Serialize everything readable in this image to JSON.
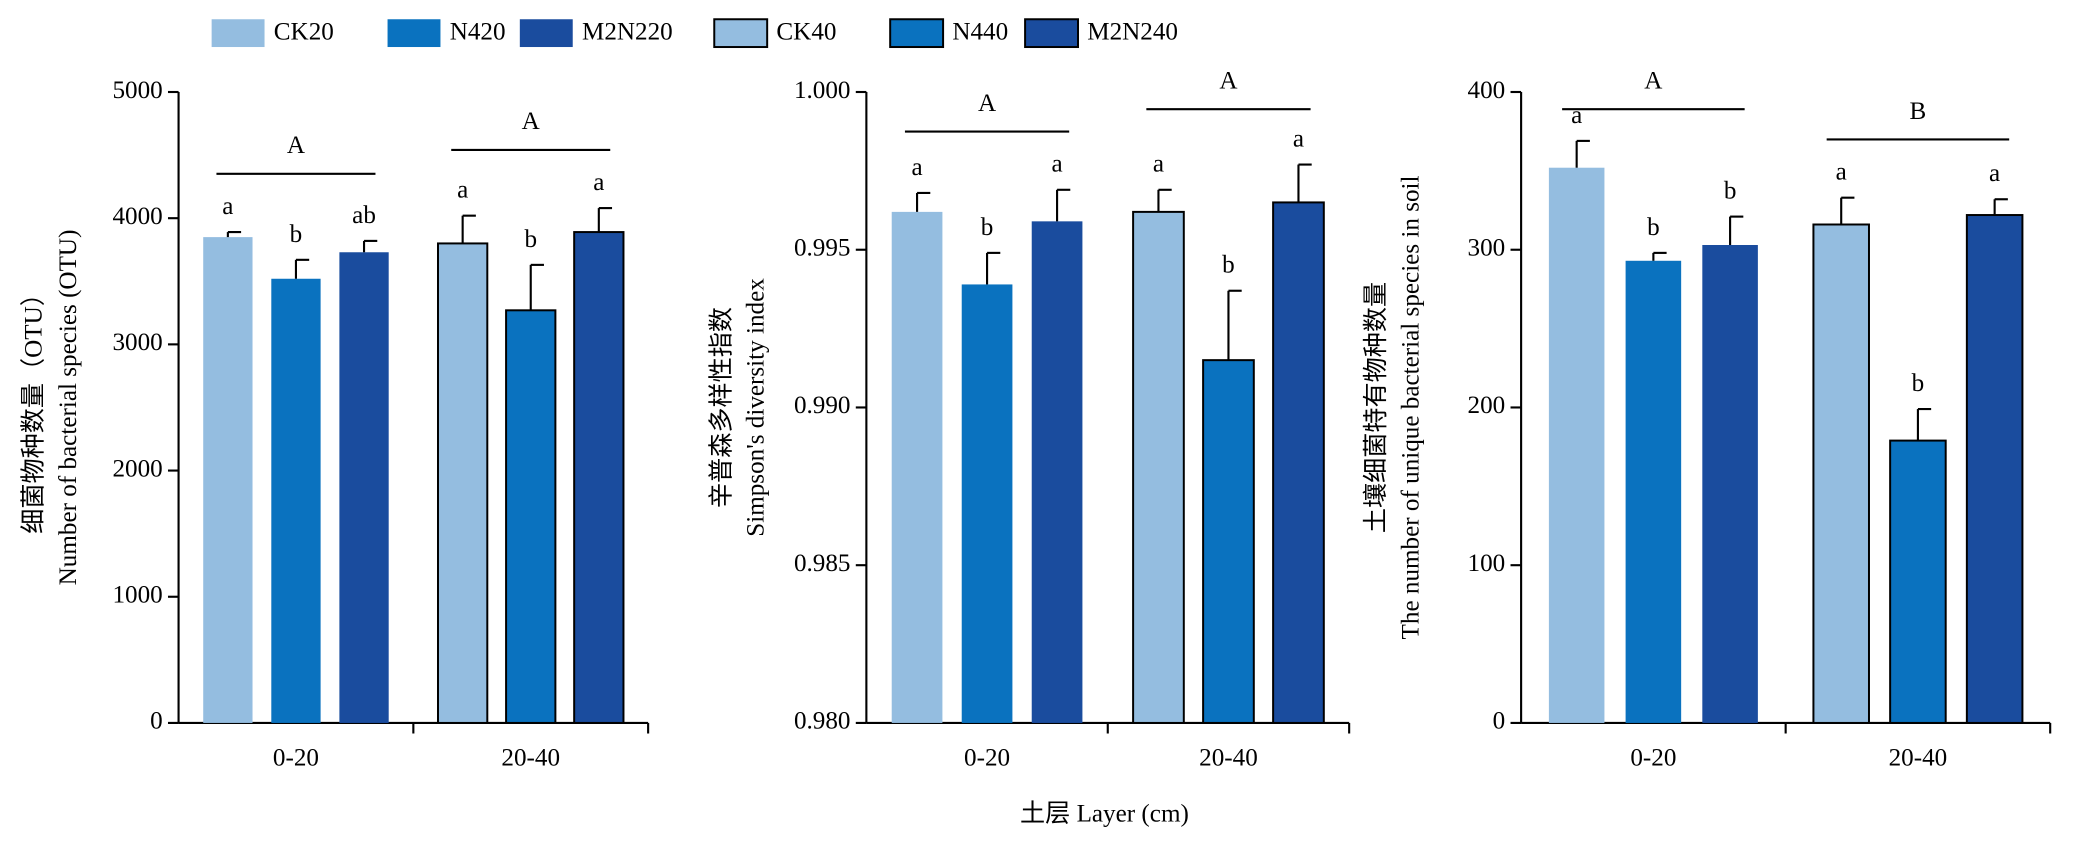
{
  "x_label": "土层 Layer (cm)",
  "chart_data": [
    {
      "type": "bar",
      "y_label": [
        "细菌物种数量（OTU）",
        "Number of bacterial species (OTU)"
      ],
      "categories": [
        "0-20",
        "20-40"
      ],
      "ylim": [
        0,
        5000
      ],
      "yticks": [
        0,
        1000,
        2000,
        3000,
        4000,
        5000
      ],
      "group_labels": [
        "A",
        "A"
      ],
      "series": [
        {
          "name": "CK20",
          "color": "#94bde0",
          "values": [
            3850,
            null
          ],
          "errors": [
            40,
            null
          ],
          "letters": [
            "a",
            null
          ]
        },
        {
          "name": "N420",
          "color": "#0a72bf",
          "values": [
            3520,
            null
          ],
          "errors": [
            150,
            null
          ],
          "letters": [
            "b",
            null
          ]
        },
        {
          "name": "M2N220",
          "color": "#1a4c9e",
          "values": [
            3730,
            null
          ],
          "errors": [
            90,
            null
          ],
          "letters": [
            "ab",
            null
          ]
        },
        {
          "name": "CK40",
          "color": "#94bde0",
          "edge": "#000000",
          "values": [
            null,
            3800
          ],
          "errors": [
            null,
            220
          ],
          "letters": [
            null,
            "a"
          ]
        },
        {
          "name": "N440",
          "color": "#0a72bf",
          "edge": "#000000",
          "values": [
            null,
            3270
          ],
          "errors": [
            null,
            360
          ],
          "letters": [
            null,
            "b"
          ]
        },
        {
          "name": "M2N240",
          "color": "#1a4c9e",
          "edge": "#000000",
          "values": [
            null,
            3890
          ],
          "errors": [
            null,
            190
          ],
          "letters": [
            null,
            "a"
          ]
        }
      ]
    },
    {
      "type": "bar",
      "y_label": [
        "辛普森多样性指数",
        "Simpson's diversity index"
      ],
      "categories": [
        "0-20",
        "20-40"
      ],
      "ylim": [
        0.98,
        1.0
      ],
      "yticks": [
        {
          "value": 0.98,
          "label": "0.980"
        },
        {
          "value": 0.985,
          "label": "0.985"
        },
        {
          "value": 0.99,
          "label": "0.990"
        },
        {
          "value": 0.995,
          "label": "0.995"
        },
        {
          "value": 1.0,
          "label": "1.000"
        }
      ],
      "group_labels": [
        "A",
        "A"
      ],
      "series": [
        {
          "name": "CK20",
          "color": "#94bde0",
          "values": [
            0.9962,
            null
          ],
          "errors": [
            0.0006,
            null
          ],
          "letters": [
            "a",
            null
          ]
        },
        {
          "name": "N420",
          "color": "#0a72bf",
          "values": [
            0.9939,
            null
          ],
          "errors": [
            0.001,
            null
          ],
          "letters": [
            "b",
            null
          ]
        },
        {
          "name": "M2N220",
          "color": "#1a4c9e",
          "values": [
            0.9959,
            null
          ],
          "errors": [
            0.001,
            null
          ],
          "letters": [
            "a",
            null
          ]
        },
        {
          "name": "CK40",
          "color": "#94bde0",
          "edge": "#000000",
          "values": [
            null,
            0.9962
          ],
          "errors": [
            null,
            0.0007
          ],
          "letters": [
            null,
            "a"
          ]
        },
        {
          "name": "N440",
          "color": "#0a72bf",
          "edge": "#000000",
          "values": [
            null,
            0.9915
          ],
          "errors": [
            null,
            0.0022
          ],
          "letters": [
            null,
            "b"
          ]
        },
        {
          "name": "M2N240",
          "color": "#1a4c9e",
          "edge": "#000000",
          "values": [
            null,
            0.9965
          ],
          "errors": [
            null,
            0.0012
          ],
          "letters": [
            null,
            "a"
          ]
        }
      ]
    },
    {
      "type": "bar",
      "y_label": [
        "土壤细菌特有物种数量",
        "The number of unique bacterial species in soil"
      ],
      "categories": [
        "0-20",
        "20-40"
      ],
      "ylim": [
        0,
        400
      ],
      "yticks": [
        0,
        100,
        200,
        300,
        400
      ],
      "group_labels": [
        "A",
        "B"
      ],
      "series": [
        {
          "name": "CK20",
          "color": "#94bde0",
          "values": [
            352,
            null
          ],
          "errors": [
            17,
            null
          ],
          "letters": [
            "a",
            null
          ]
        },
        {
          "name": "N420",
          "color": "#0a72bf",
          "values": [
            293,
            null
          ],
          "errors": [
            5,
            null
          ],
          "letters": [
            "b",
            null
          ]
        },
        {
          "name": "M2N220",
          "color": "#1a4c9e",
          "values": [
            303,
            null
          ],
          "errors": [
            18,
            null
          ],
          "letters": [
            "b",
            null
          ]
        },
        {
          "name": "CK40",
          "color": "#94bde0",
          "edge": "#000000",
          "values": [
            null,
            316
          ],
          "errors": [
            null,
            17
          ],
          "letters": [
            null,
            "a"
          ]
        },
        {
          "name": "N440",
          "color": "#0a72bf",
          "edge": "#000000",
          "values": [
            null,
            179
          ],
          "errors": [
            null,
            20
          ],
          "letters": [
            null,
            "b"
          ]
        },
        {
          "name": "M2N240",
          "color": "#1a4c9e",
          "edge": "#000000",
          "values": [
            null,
            322
          ],
          "errors": [
            null,
            10
          ],
          "letters": [
            null,
            "a"
          ]
        }
      ]
    }
  ]
}
